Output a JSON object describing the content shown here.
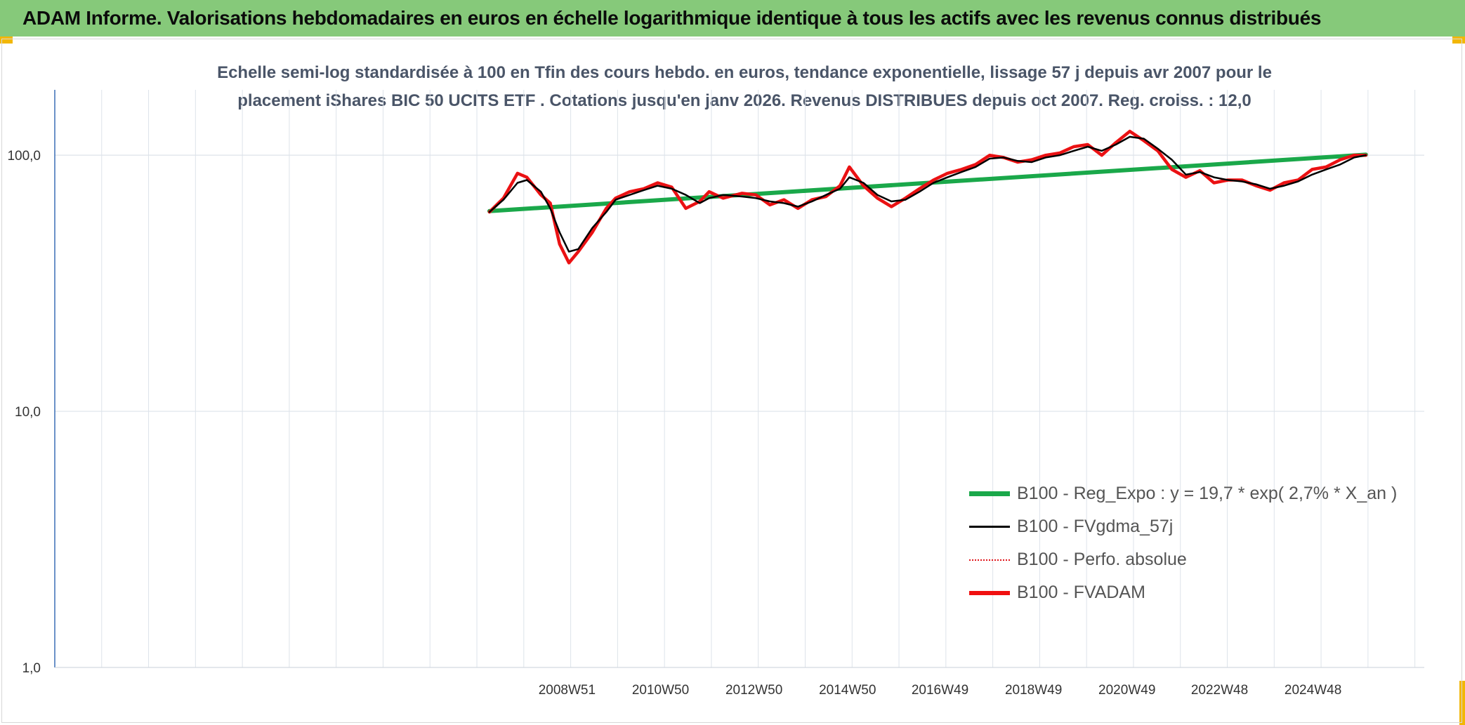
{
  "banner": {
    "title": "ADAM Informe. Valorisations hebdomadaires en euros en échelle logarithmique identique à tous les actifs avec les revenus connus distribués"
  },
  "colors": {
    "banner": "#86c97a",
    "corner": "#f2b705",
    "reg_expo": "#1aa84a",
    "fvgdma": "#000000",
    "perfo": "#e0141a",
    "fvadam": "#f01010"
  },
  "chart_data": {
    "type": "line",
    "title_line1": "Echelle semi-log standardisée à 100 en Tfin des cours hebdo. en euros, tendance exponentielle, lissage 57 j depuis avr 2007 pour le",
    "title_line2": "placement iShares BIC 50 UCITS ETF . Cotations jusqu'en janv 2026. Revenus DISTRIBUES depuis oct 2007. Reg. croiss. : 12,0",
    "y_scale": "log",
    "ylim": [
      1,
      180
    ],
    "y_ticks": [
      "100,0",
      "10,0",
      "1,0"
    ],
    "x_tick_labels": [
      "2008W51",
      "2010W50",
      "2012W50",
      "2014W50",
      "2016W49",
      "2018W49",
      "2020W49",
      "2022W48",
      "2024W48"
    ],
    "xlim": [
      1998.0,
      2027.3
    ],
    "grid": true,
    "legend_position": "bottom-right",
    "series": [
      {
        "name": "B100 - Reg_Expo : y = 19,7 * exp( 2,7% *  X_an )",
        "x": [
          2007.3,
          2026.05
        ],
        "y": [
          60.5,
          100.5
        ]
      },
      {
        "name": "B100 - FVgdma_57j",
        "x": [
          2007.3,
          2007.6,
          2007.9,
          2008.1,
          2008.4,
          2008.6,
          2008.8,
          2009.0,
          2009.2,
          2009.5,
          2009.8,
          2010.0,
          2010.3,
          2010.6,
          2010.9,
          2011.2,
          2011.5,
          2011.8,
          2012.0,
          2012.3,
          2012.7,
          2013.0,
          2013.3,
          2013.6,
          2013.9,
          2014.2,
          2014.5,
          2014.8,
          2015.0,
          2015.3,
          2015.6,
          2015.9,
          2016.2,
          2016.5,
          2016.8,
          2017.1,
          2017.4,
          2017.7,
          2018.0,
          2018.3,
          2018.6,
          2018.9,
          2019.2,
          2019.5,
          2019.8,
          2020.1,
          2020.4,
          2020.7,
          2021.0,
          2021.3,
          2021.6,
          2021.9,
          2022.2,
          2022.5,
          2022.8,
          2023.1,
          2023.4,
          2023.7,
          2024.0,
          2024.3,
          2024.6,
          2024.9,
          2025.2,
          2025.5,
          2025.8,
          2026.05
        ],
        "y": [
          60,
          67,
          78,
          80,
          72,
          62,
          50,
          42,
          43,
          52,
          60,
          67,
          70,
          73,
          76,
          74,
          70,
          65,
          68,
          70,
          69,
          68,
          66,
          65,
          63,
          66,
          70,
          74,
          82,
          78,
          70,
          66,
          67,
          72,
          78,
          82,
          86,
          90,
          97,
          98,
          95,
          94,
          98,
          100,
          104,
          108,
          104,
          110,
          118,
          116,
          106,
          96,
          84,
          86,
          82,
          80,
          79,
          77,
          74,
          76,
          79,
          84,
          88,
          92,
          98,
          100
        ]
      },
      {
        "name": "B100 - Perfo. absolue",
        "x": [
          2007.3,
          2007.6,
          2007.9,
          2008.1,
          2008.4,
          2008.6,
          2008.8,
          2009.0,
          2009.2,
          2009.5,
          2009.8,
          2010.0,
          2010.3,
          2010.6,
          2010.9,
          2011.2,
          2011.5,
          2011.8,
          2012.0,
          2012.3,
          2012.7,
          2013.0,
          2013.3,
          2013.6,
          2013.9,
          2014.2,
          2014.5,
          2014.8,
          2015.0,
          2015.3,
          2015.6,
          2015.9,
          2016.2,
          2016.5,
          2016.8,
          2017.1,
          2017.4,
          2017.7,
          2018.0,
          2018.3,
          2018.6,
          2018.9,
          2019.2,
          2019.5,
          2019.8,
          2020.1,
          2020.4,
          2020.7,
          2021.0,
          2021.3,
          2021.6,
          2021.9,
          2022.2,
          2022.5,
          2022.8,
          2023.1,
          2023.4,
          2023.7,
          2024.0,
          2024.3,
          2024.6,
          2024.9,
          2025.2,
          2025.5,
          2025.8,
          2026.05
        ],
        "y": [
          60,
          68,
          85,
          82,
          70,
          65,
          45,
          38,
          42,
          50,
          62,
          68,
          72,
          74,
          78,
          75,
          62,
          66,
          72,
          68,
          71,
          70,
          64,
          67,
          62,
          67,
          69,
          76,
          90,
          76,
          68,
          63,
          68,
          74,
          80,
          85,
          88,
          92,
          100,
          98,
          94,
          96,
          100,
          102,
          108,
          110,
          100,
          112,
          124,
          114,
          104,
          88,
          82,
          87,
          78,
          80,
          80,
          76,
          73,
          78,
          80,
          88,
          90,
          96,
          100,
          100
        ]
      },
      {
        "name": "B100 - FVADAM",
        "x": [
          2007.3,
          2007.6,
          2007.9,
          2008.1,
          2008.4,
          2008.6,
          2008.8,
          2009.0,
          2009.2,
          2009.5,
          2009.8,
          2010.0,
          2010.3,
          2010.6,
          2010.9,
          2011.2,
          2011.5,
          2011.8,
          2012.0,
          2012.3,
          2012.7,
          2013.0,
          2013.3,
          2013.6,
          2013.9,
          2014.2,
          2014.5,
          2014.8,
          2015.0,
          2015.3,
          2015.6,
          2015.9,
          2016.2,
          2016.5,
          2016.8,
          2017.1,
          2017.4,
          2017.7,
          2018.0,
          2018.3,
          2018.6,
          2018.9,
          2019.2,
          2019.5,
          2019.8,
          2020.1,
          2020.4,
          2020.7,
          2021.0,
          2021.3,
          2021.6,
          2021.9,
          2022.2,
          2022.5,
          2022.8,
          2023.1,
          2023.4,
          2023.7,
          2024.0,
          2024.3,
          2024.6,
          2024.9,
          2025.2,
          2025.5,
          2025.8,
          2026.05
        ],
        "y": [
          60,
          68,
          85,
          82,
          70,
          65,
          45,
          38,
          42,
          50,
          62,
          68,
          72,
          74,
          78,
          75,
          62,
          66,
          72,
          68,
          71,
          70,
          64,
          67,
          62,
          67,
          69,
          76,
          90,
          76,
          68,
          63,
          68,
          74,
          80,
          85,
          88,
          92,
          100,
          98,
          94,
          96,
          100,
          102,
          108,
          110,
          100,
          112,
          124,
          114,
          104,
          88,
          82,
          87,
          78,
          80,
          80,
          76,
          73,
          78,
          80,
          88,
          90,
          96,
          100,
          100
        ]
      }
    ]
  }
}
